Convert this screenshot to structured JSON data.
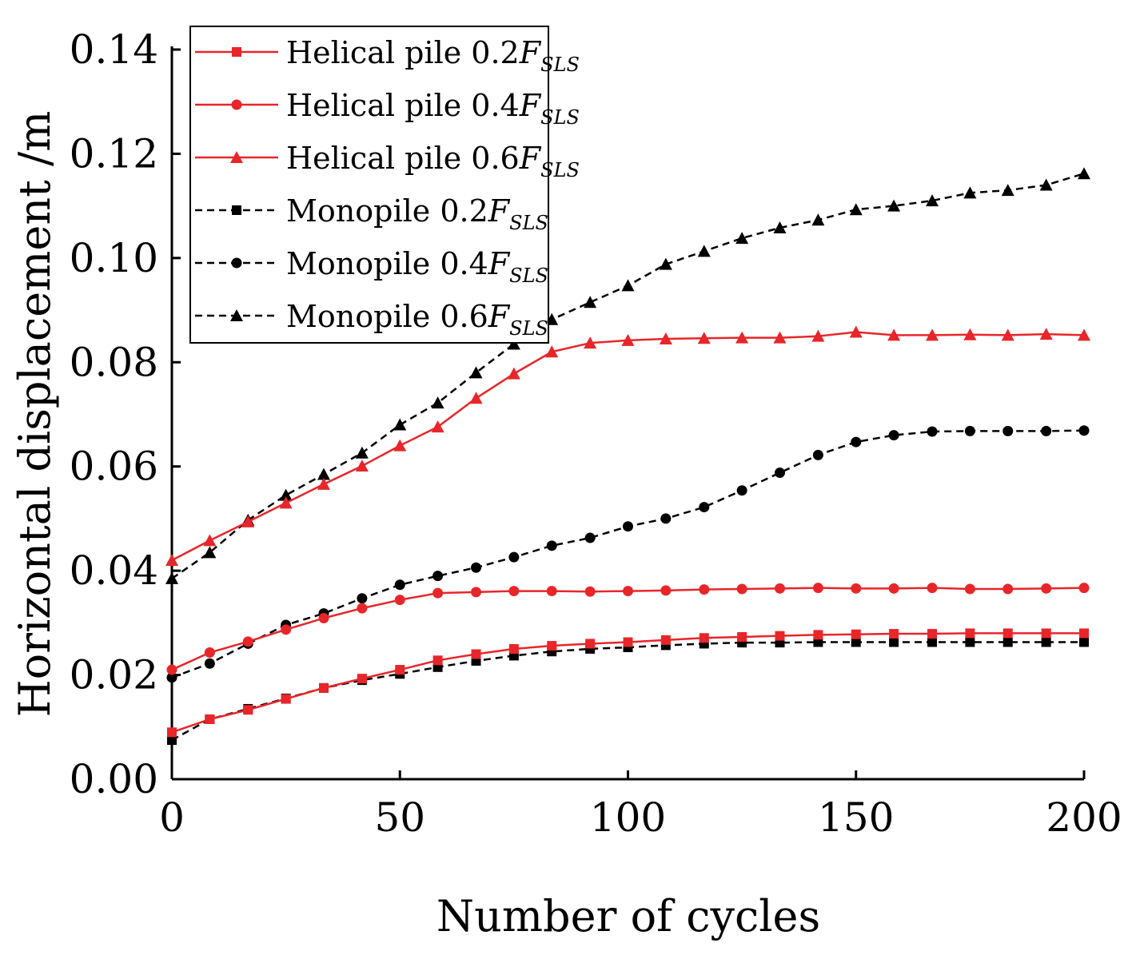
{
  "chart_data": {
    "type": "line",
    "title": "",
    "xlabel": "Number of cycles",
    "ylabel": "Horizontal displacement /m",
    "xlim": [
      0,
      200
    ],
    "ylim": [
      0,
      0.14
    ],
    "xticks": [
      0,
      50,
      100,
      150,
      200
    ],
    "xtick_labels": [
      "0",
      "50",
      "100",
      "150",
      "200"
    ],
    "yticks": [
      0,
      0.02,
      0.04,
      0.06,
      0.08,
      0.1,
      0.12,
      0.14
    ],
    "ytick_labels": [
      "0.00",
      "0.02",
      "0.04",
      "0.06",
      "0.08",
      "0.10",
      "0.12",
      "0.14"
    ],
    "grid": false,
    "legend_position": "top-left",
    "x": [
      0,
      8.3,
      16.7,
      25,
      33.3,
      41.7,
      50,
      58.3,
      66.7,
      75,
      83.3,
      91.7,
      100,
      108.3,
      116.7,
      125,
      133.3,
      141.7,
      150,
      158.3,
      166.7,
      175,
      183.3,
      191.7,
      200
    ],
    "series": [
      {
        "name": "Helical pile 0.2F",
        "name_base": "Helical pile 0.2",
        "name_var": "F",
        "name_sub": "SLS",
        "color": "#e8262a",
        "marker": "square",
        "dash": "solid",
        "values": [
          0.009,
          0.0115,
          0.0133,
          0.0154,
          0.0175,
          0.0193,
          0.021,
          0.0228,
          0.024,
          0.025,
          0.0256,
          0.026,
          0.0263,
          0.0267,
          0.0271,
          0.0273,
          0.0275,
          0.0277,
          0.0278,
          0.0279,
          0.0279,
          0.028,
          0.028,
          0.028,
          0.028
        ]
      },
      {
        "name": "Helical pile 0.4F",
        "name_base": "Helical pile 0.4",
        "name_var": "F",
        "name_sub": "SLS",
        "color": "#e8262a",
        "marker": "circle",
        "dash": "solid",
        "values": [
          0.021,
          0.0243,
          0.0264,
          0.0287,
          0.0309,
          0.0328,
          0.0344,
          0.0357,
          0.0359,
          0.0361,
          0.0361,
          0.036,
          0.0361,
          0.0362,
          0.0364,
          0.0365,
          0.0366,
          0.0367,
          0.0366,
          0.0366,
          0.0367,
          0.0365,
          0.0365,
          0.0366,
          0.0367
        ]
      },
      {
        "name": "Helical pile 0.6F",
        "name_base": "Helical pile 0.6",
        "name_var": "F",
        "name_sub": "SLS",
        "color": "#e8262a",
        "marker": "triangle",
        "dash": "solid",
        "values": [
          0.042,
          0.0458,
          0.0494,
          0.053,
          0.0566,
          0.0601,
          0.064,
          0.0676,
          0.0731,
          0.0778,
          0.082,
          0.0837,
          0.0842,
          0.0845,
          0.0846,
          0.0847,
          0.0847,
          0.085,
          0.0858,
          0.0852,
          0.0852,
          0.0853,
          0.0852,
          0.0854,
          0.0852
        ]
      },
      {
        "name": "Monopile 0.2F",
        "name_base": "Monopile 0.2",
        "name_var": "F",
        "name_sub": "SLS",
        "color": "#000000",
        "marker": "square",
        "dash": "dashed",
        "values": [
          0.0075,
          0.0115,
          0.0135,
          0.0155,
          0.0175,
          0.019,
          0.0202,
          0.0215,
          0.0227,
          0.0237,
          0.0245,
          0.025,
          0.0253,
          0.0257,
          0.026,
          0.0262,
          0.0262,
          0.0263,
          0.0263,
          0.0263,
          0.0263,
          0.0263,
          0.0263,
          0.0263,
          0.0263
        ]
      },
      {
        "name": "Monopile 0.4F",
        "name_base": "Monopile 0.4",
        "name_var": "F",
        "name_sub": "SLS",
        "color": "#000000",
        "marker": "circle",
        "dash": "dashed",
        "values": [
          0.0195,
          0.0222,
          0.026,
          0.0296,
          0.0318,
          0.0347,
          0.0373,
          0.039,
          0.0406,
          0.0426,
          0.0448,
          0.0463,
          0.0485,
          0.05,
          0.0522,
          0.0554,
          0.0588,
          0.0622,
          0.0647,
          0.066,
          0.0667,
          0.0668,
          0.0668,
          0.0668,
          0.0669
        ]
      },
      {
        "name": "Monopile 0.6F",
        "name_base": "Monopile 0.6",
        "name_var": "F",
        "name_sub": "SLS",
        "color": "#000000",
        "marker": "triangle",
        "dash": "dashed",
        "values": [
          0.0385,
          0.0435,
          0.0497,
          0.0545,
          0.0585,
          0.0626,
          0.068,
          0.0722,
          0.078,
          0.0835,
          0.0882,
          0.0915,
          0.0947,
          0.0988,
          0.1013,
          0.1038,
          0.1058,
          0.1073,
          0.1093,
          0.11,
          0.111,
          0.1125,
          0.113,
          0.114,
          0.1162
        ]
      }
    ]
  }
}
